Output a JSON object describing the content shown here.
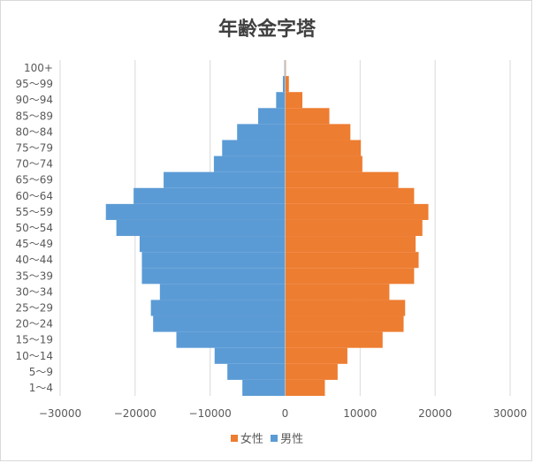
{
  "chart_data": {
    "type": "bar",
    "title": "年齢金字塔",
    "categories": [
      "1～4",
      "5～9",
      "10～14",
      "15～19",
      "20～24",
      "25～29",
      "30～34",
      "35～39",
      "40～44",
      "45～49",
      "50～54",
      "55～59",
      "60～64",
      "65～69",
      "70～74",
      "75～79",
      "80～84",
      "85～89",
      "90～94",
      "95～99",
      "100+"
    ],
    "series": [
      {
        "name": "女性",
        "color": "#ed7d31",
        "values": [
          5300,
          7000,
          8300,
          13000,
          15800,
          16000,
          13900,
          17200,
          17800,
          17400,
          18300,
          19100,
          17200,
          15100,
          10300,
          10100,
          8700,
          5900,
          2300,
          500,
          100
        ]
      },
      {
        "name": "男性",
        "color": "#5b9bd5",
        "values": [
          -5700,
          -7700,
          -9400,
          -14500,
          -17600,
          -17900,
          -16700,
          -19100,
          -19100,
          -19400,
          -22500,
          -23900,
          -20200,
          -16200,
          -9500,
          -8400,
          -6400,
          -3600,
          -1200,
          -300,
          -100
        ]
      }
    ],
    "xlim": [
      -30000,
      30000
    ],
    "xticks": [
      "−30000",
      "−20000",
      "−10000",
      "0",
      "10000",
      "20000",
      "30000"
    ],
    "xtick_values": [
      -30000,
      -20000,
      -10000,
      0,
      10000,
      20000,
      30000
    ],
    "grid": true,
    "legend_position": "bottom"
  }
}
